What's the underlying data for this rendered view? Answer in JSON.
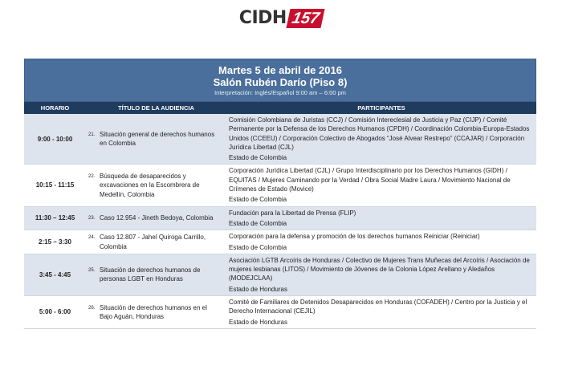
{
  "logo": {
    "text": "CIDH",
    "number": "157"
  },
  "banner": {
    "date": "Martes 5 de abril de 2016",
    "room": "Salón Rubén Darío  (Piso 8)",
    "interpretation": "Interpretación: Inglés/Español 9:00 am – 6:00 pm"
  },
  "columns": {
    "time": "HORARIO",
    "title": "TÍTULO DE LA AUDIENCIA",
    "participants": "PARTICIPANTES"
  },
  "rows": [
    {
      "time": "9:00 - 10:00",
      "number": "21.",
      "title": "Situación general de derechos humanos en Colombia",
      "organizations": "Comisión Colombiana de Juristas (CCJ) / Comisión Intereclesial de Justicia y Paz (CIJP) / Comité Permanente por la Defensa de los Derechos Humanos (CPDH) / Coordinación Colombia-Europa-Estados Unidos (CCEEU) / Corporación Colectivo de Abogados “José Alvear Restrepo” (CCAJAR) / Corporación Jurídica Libertad (CJL)",
      "state": "Estado de Colombia"
    },
    {
      "time": "10:15 - 11:15",
      "number": "22.",
      "title": "Búsqueda de desaparecidos y excavaciones en la Escombrera de Medellín, Colombia",
      "organizations": "Corporación Jurídica Libertad (CJL) / Grupo Interdisciplinario por los Derechos Humanos (GIDH) / EQUITAS / Mujeres Caminando por la Verdad / Obra Social Madre Laura / Movimiento Nacional de Crímenes de Estado (Movice)",
      "state": "Estado de Colombia"
    },
    {
      "time": "11:30 – 12:45",
      "number": "23.",
      "title": "Caso 12.954 - Jineth Bedoya, Colombia",
      "organizations": "Fundación para la Libertad de Prensa (FLIP)",
      "state": "Estado de Colombia"
    },
    {
      "time": "2:15 – 3:30",
      "number": "24.",
      "title": "Caso 12.807 - Jahel Quiroga Carrillo, Colombia",
      "organizations": "Corporación para la defensa y promoción de los derechos humanos Reiniciar (Reiniciar)",
      "state": "Estado de Colombia"
    },
    {
      "time": "3:45 - 4:45",
      "number": "25.",
      "title": "Situación de derechos humanos de personas LGBT en Honduras",
      "organizations": "Asociación LGTB Arcoíris de Honduras / Colectivo de Mujeres Trans Muñecas del Arcoíris / Asociación de mujeres lesbianas (LITOS) / Movimiento de Jóvenes de la Colonia López Arellano y Aledaños (MODEJCLAA)",
      "state": "Estado de Honduras"
    },
    {
      "time": "5:00 - 6:00",
      "number": "26.",
      "title": "Situación de derechos humanos en el Bajo Aguán, Honduras",
      "organizations": "Comité de Familiares de Detenidos Desaparecidos en Honduras (COFADEH) / Centro por la Justicia y el Derecho Internacional (CEJIL)",
      "state": "Estado de Honduras"
    }
  ]
}
